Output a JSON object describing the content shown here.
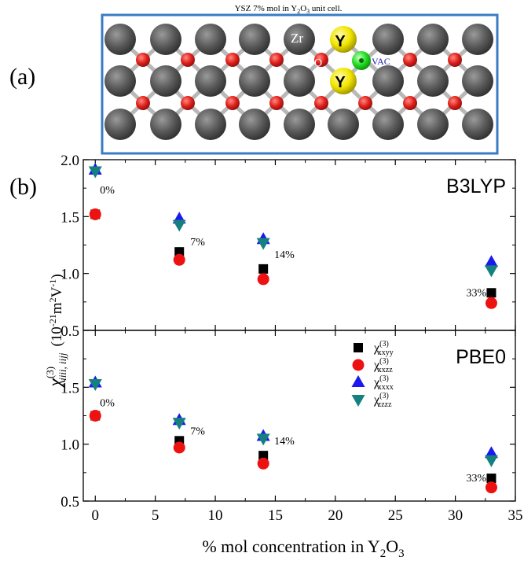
{
  "figure": {
    "panel_a": {
      "label": "(a)",
      "caption_text": "YSZ 7% mol in Y",
      "caption_sub1": "2",
      "caption_mid": "O",
      "caption_sub2": "3",
      "caption_end": " unit cell.",
      "atom_labels": {
        "zr": "Zr",
        "o": "O",
        "y_top": "Y",
        "y_bottom": "Y",
        "vac": "VAC"
      },
      "colors": {
        "zr": "#5a5a5a",
        "o": "#e0201c",
        "y": "#f2e600",
        "vac": "#22dd22",
        "frame": "#3a7cc4",
        "bond": "#b8b8b8"
      }
    },
    "panel_b_label": "(b)",
    "x_axis_label": "% mol concentration in Y",
    "x_axis_sub1": "2",
    "x_axis_mid": "O",
    "x_axis_sub2": "3",
    "y_axis_label_chi": "χ",
    "y_axis_label_sup": "(3)",
    "y_axis_label_sub": "iiii, iijj",
    "y_axis_label_units": "(10",
    "y_axis_label_units_exp": "-21",
    "y_axis_label_units_mid": "m",
    "y_axis_label_units_exp2": "2",
    "y_axis_label_units_v": "V",
    "y_axis_label_units_exp3": "-1",
    "y_axis_label_units_end": ")"
  },
  "chart_data": [
    {
      "type": "scatter",
      "title": "B3LYP",
      "x": [
        0,
        7,
        14,
        33
      ],
      "point_labels": [
        "0%",
        "7%",
        "14%",
        "33%"
      ],
      "xlim": [
        -1,
        35
      ],
      "ylim": [
        0.5,
        2.0
      ],
      "yticks": [
        0.5,
        1.0,
        1.5,
        2.0
      ],
      "xticks": [
        0,
        5,
        10,
        15,
        20,
        25,
        30,
        35
      ],
      "series": [
        {
          "name": "χxxyy(3)",
          "sub": "xxyy",
          "marker": "square",
          "color": "#000000",
          "values": [
            1.52,
            1.19,
            1.04,
            0.83
          ]
        },
        {
          "name": "χxxzz(3)",
          "sub": "xxzz",
          "marker": "circle",
          "color": "#ee1111",
          "values": [
            1.52,
            1.12,
            0.95,
            0.74
          ]
        },
        {
          "name": "χxxxx(3)",
          "sub": "xxxx",
          "marker": "triangle-up",
          "color": "#1a1aee",
          "values": [
            1.91,
            1.48,
            1.3,
            1.1
          ]
        },
        {
          "name": "χzzzz(3)",
          "sub": "zzzz",
          "marker": "triangle-down",
          "color": "#158080",
          "values": [
            1.9,
            1.43,
            1.27,
            1.03
          ]
        }
      ]
    },
    {
      "type": "scatter",
      "title": "PBE0",
      "x": [
        0,
        7,
        14,
        33
      ],
      "point_labels": [
        "0%",
        "7%",
        "14%",
        "33%"
      ],
      "xlim": [
        -1,
        35
      ],
      "ylim": [
        0.5,
        2.0
      ],
      "yticks": [
        0.5,
        1.0,
        1.5
      ],
      "xticks": [
        0,
        5,
        10,
        15,
        20,
        25,
        30,
        35
      ],
      "legend": "top-right",
      "series": [
        {
          "name": "χxxyy(3)",
          "sub": "xxyy",
          "marker": "square",
          "color": "#000000",
          "values": [
            1.25,
            1.03,
            0.9,
            0.7
          ]
        },
        {
          "name": "χxxzz(3)",
          "sub": "xxzz",
          "marker": "circle",
          "color": "#ee1111",
          "values": [
            1.25,
            0.97,
            0.83,
            0.62
          ]
        },
        {
          "name": "χxxxx(3)",
          "sub": "xxxx",
          "marker": "triangle-up",
          "color": "#1a1aee",
          "values": [
            1.54,
            1.21,
            1.07,
            0.92
          ]
        },
        {
          "name": "χzzzz(3)",
          "sub": "zzzz",
          "marker": "triangle-down",
          "color": "#158080",
          "values": [
            1.53,
            1.19,
            1.05,
            0.86
          ]
        }
      ]
    }
  ]
}
